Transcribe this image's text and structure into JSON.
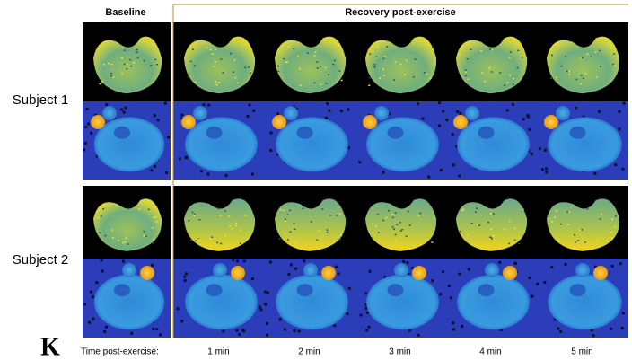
{
  "header": {
    "baseline": "Baseline",
    "recovery": "Recovery post-exercise"
  },
  "rows": [
    {
      "label": "Subject 1"
    },
    {
      "label": "Subject 2"
    }
  ],
  "panel_label": "K",
  "footer": {
    "label": "Time post-exercise:",
    "times": [
      "1 min",
      "2 min",
      "3 min",
      "4 min",
      "5 min"
    ]
  }
}
